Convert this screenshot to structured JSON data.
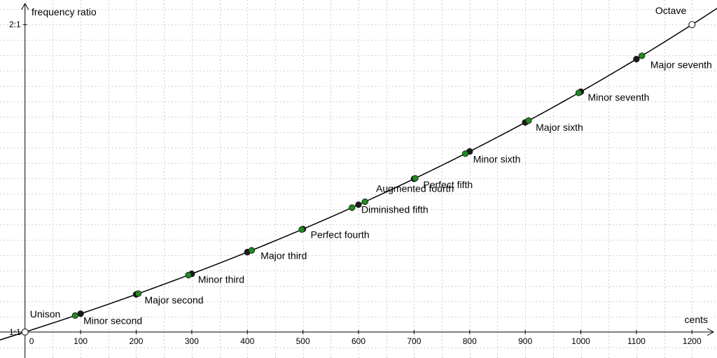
{
  "chart_data": {
    "type": "scatter",
    "xlabel": "cents",
    "ylabel": "frequency ratio",
    "xlim": [
      -45,
      1245
    ],
    "ylim": [
      0.9155,
      2.08
    ],
    "grid": true,
    "x_ticks": [
      "0",
      "100",
      "200",
      "300",
      "400",
      "500",
      "600",
      "700",
      "800",
      "900",
      "1000",
      "1100",
      "1200"
    ],
    "y_ticks": [
      {
        "value": 1,
        "label": "1:1"
      },
      {
        "value": 2,
        "label": "2:1"
      }
    ],
    "curve": {
      "formula": "ratio = 2^(cents/1200)",
      "x_range": [
        -60,
        1260
      ]
    },
    "series": [
      {
        "color": "#1a1a1a",
        "points": [
          {
            "x": 0,
            "y": 1,
            "hollow": true
          },
          {
            "x": 100,
            "y": 1.0595
          },
          {
            "x": 200,
            "y": 1.1225
          },
          {
            "x": 300,
            "y": 1.1892
          },
          {
            "x": 400,
            "y": 1.2599
          },
          {
            "x": 500,
            "y": 1.3348
          },
          {
            "x": 600,
            "y": 1.4142
          },
          {
            "x": 700,
            "y": 1.4983
          },
          {
            "x": 800,
            "y": 1.5874
          },
          {
            "x": 900,
            "y": 1.6818
          },
          {
            "x": 1000,
            "y": 1.7818
          },
          {
            "x": 1100,
            "y": 1.8877
          },
          {
            "x": 1200,
            "y": 2,
            "hollow": true
          }
        ]
      },
      {
        "color": "#1e8c1e",
        "points": [
          {
            "x": 90.2,
            "y": 1.0535
          },
          {
            "x": 203.9,
            "y": 1.125
          },
          {
            "x": 294.1,
            "y": 1.1852
          },
          {
            "x": 407.8,
            "y": 1.2656
          },
          {
            "x": 498.0,
            "y": 1.3333
          },
          {
            "x": 588.3,
            "y": 1.4047
          },
          {
            "x": 611.7,
            "y": 1.4238
          },
          {
            "x": 702.0,
            "y": 1.5
          },
          {
            "x": 792.2,
            "y": 1.5802
          },
          {
            "x": 905.9,
            "y": 1.6875
          },
          {
            "x": 996.1,
            "y": 1.7778
          },
          {
            "x": 1109.8,
            "y": 1.8984
          }
        ]
      }
    ],
    "annotations": [
      {
        "text": "Unison",
        "x": 0,
        "y": 1
      },
      {
        "text": "Minor second",
        "x": 100,
        "y": 1.0595
      },
      {
        "text": "Major second",
        "x": 200,
        "y": 1.1225
      },
      {
        "text": "Minor third",
        "x": 300,
        "y": 1.1892
      },
      {
        "text": "Major third",
        "x": 400,
        "y": 1.2599
      },
      {
        "text": "Perfect fourth",
        "x": 500,
        "y": 1.3348
      },
      {
        "text": "Diminished fifth",
        "x": 600,
        "y": 1.4142
      },
      {
        "text": "Augmented fourth",
        "x": 600,
        "y": 1.4142
      },
      {
        "text": "Perfect fifth",
        "x": 700,
        "y": 1.4983
      },
      {
        "text": "Minor sixth",
        "x": 800,
        "y": 1.5874
      },
      {
        "text": "Major sixth",
        "x": 900,
        "y": 1.6818
      },
      {
        "text": "Minor seventh",
        "x": 1000,
        "y": 1.7818
      },
      {
        "text": "Major seventh",
        "x": 1100,
        "y": 1.8877
      },
      {
        "text": "Octave",
        "x": 1200,
        "y": 2
      }
    ]
  }
}
